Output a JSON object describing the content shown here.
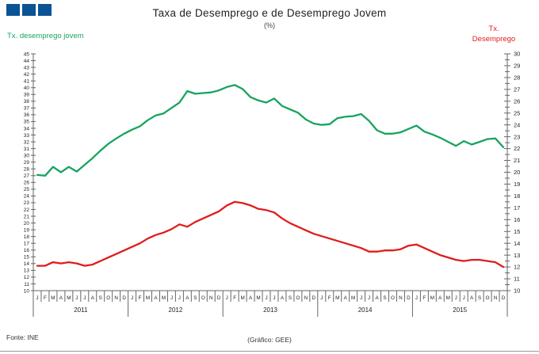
{
  "logo": {
    "squares": 3,
    "color": "#0b5394"
  },
  "header": {
    "title": "Taxa de Desemprego e de Desemprego Jovem",
    "subtitle": "(%)"
  },
  "axis_labels": {
    "left": "Tx. desemprego jovem",
    "right_line1": "Tx.",
    "right_line2": "Desemprego"
  },
  "footer": {
    "source": "Fonte: INE",
    "credit": "(Gráfico: GEE)"
  },
  "colors": {
    "youth": "#18a35f",
    "unemployment": "#e01c1c",
    "axis_line": "#666666",
    "tick_text": "#222222",
    "title_text": "#222222"
  },
  "chart_data": {
    "type": "line",
    "title": "Taxa de Desemprego e de Desemprego Jovem",
    "subtitle": "(%)",
    "grid": "off",
    "legend_position": "axis-titles-top",
    "x_months": [
      "J",
      "F",
      "M",
      "A",
      "M",
      "J",
      "J",
      "A",
      "S",
      "O",
      "N",
      "D"
    ],
    "years": [
      "2011",
      "2012",
      "2013",
      "2014",
      "2015"
    ],
    "left_axis": {
      "label": "Tx. desemprego jovem",
      "min": 10,
      "max": 45,
      "tick_step": 1
    },
    "right_axis": {
      "label": "Tx. Desemprego",
      "min": 10,
      "max": 30,
      "tick_step": 1,
      "minor_step": 0.5
    },
    "series": [
      {
        "name": "Tx. desemprego jovem",
        "axis": "left",
        "color": "#18a35f",
        "values": [
          27.1,
          27.0,
          28.3,
          27.5,
          28.3,
          27.6,
          28.6,
          29.6,
          30.7,
          31.7,
          32.5,
          33.2,
          33.8,
          34.3,
          35.2,
          35.9,
          36.2,
          37.0,
          37.8,
          39.5,
          39.1,
          39.2,
          39.3,
          39.6,
          40.1,
          40.4,
          39.8,
          38.6,
          38.1,
          37.8,
          38.4,
          37.3,
          36.8,
          36.3,
          35.3,
          34.7,
          34.5,
          34.6,
          35.5,
          35.7,
          35.8,
          36.1,
          35.1,
          33.7,
          33.2,
          33.2,
          33.4,
          33.9,
          34.4,
          33.5,
          33.1,
          32.6,
          32.0,
          31.4,
          32.1,
          31.6,
          32.0,
          32.4,
          32.5,
          31.2
        ]
      },
      {
        "name": "Tx. Desemprego",
        "axis": "right",
        "color": "#e01c1c",
        "values": [
          12.1,
          12.1,
          12.4,
          12.3,
          12.4,
          12.3,
          12.1,
          12.2,
          12.5,
          12.8,
          13.1,
          13.4,
          13.7,
          14.0,
          14.4,
          14.7,
          14.9,
          15.2,
          15.6,
          15.4,
          15.8,
          16.1,
          16.4,
          16.7,
          17.2,
          17.5,
          17.4,
          17.2,
          16.9,
          16.8,
          16.6,
          16.1,
          15.7,
          15.4,
          15.1,
          14.8,
          14.6,
          14.4,
          14.2,
          14.0,
          13.8,
          13.6,
          13.3,
          13.3,
          13.4,
          13.4,
          13.5,
          13.8,
          13.9,
          13.6,
          13.3,
          13.0,
          12.8,
          12.6,
          12.5,
          12.6,
          12.6,
          12.5,
          12.4,
          12.0
        ]
      }
    ]
  }
}
